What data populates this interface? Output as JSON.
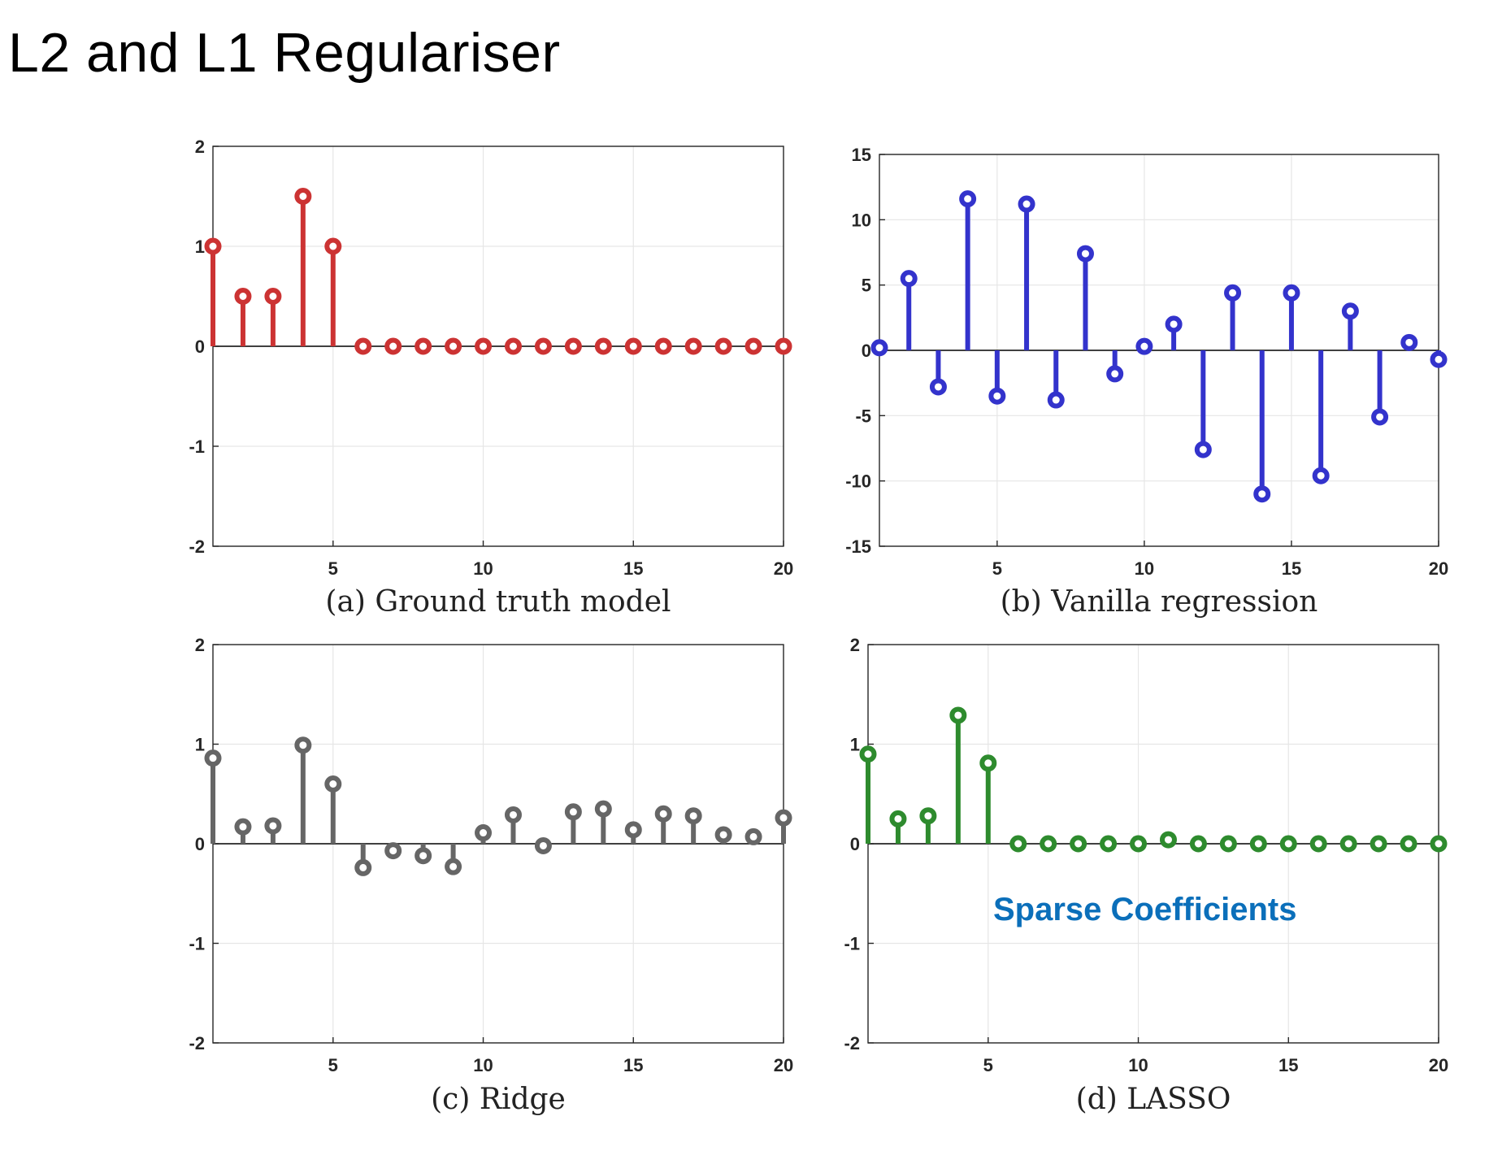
{
  "page": {
    "title": "L2 and L1 Regulariser"
  },
  "colors": {
    "axis": "#262626",
    "grid": "#e6e6e6"
  },
  "chart_data": [
    {
      "type": "stem",
      "caption": "(a) Ground truth model",
      "color": "#cc3333",
      "xlim": [
        1,
        20
      ],
      "ylim": [
        -2,
        2
      ],
      "xticks": [
        5,
        10,
        15,
        20
      ],
      "yticks": [
        -2,
        -1,
        0,
        1,
        2
      ],
      "grid": true,
      "x": [
        1,
        2,
        3,
        4,
        5,
        6,
        7,
        8,
        9,
        10,
        11,
        12,
        13,
        14,
        15,
        16,
        17,
        18,
        19,
        20
      ],
      "values": [
        1,
        0.5,
        0.5,
        1.5,
        1,
        0,
        0,
        0,
        0,
        0,
        0,
        0,
        0,
        0,
        0,
        0,
        0,
        0,
        0,
        0
      ]
    },
    {
      "type": "stem",
      "caption": "(b) Vanilla regression",
      "color": "#3333cc",
      "xlim": [
        1,
        20
      ],
      "ylim": [
        -15,
        15
      ],
      "xticks": [
        5,
        10,
        15,
        20
      ],
      "yticks": [
        -15,
        -10,
        -5,
        0,
        5,
        10,
        15
      ],
      "grid": true,
      "x": [
        1,
        2,
        3,
        4,
        5,
        6,
        7,
        8,
        9,
        10,
        11,
        12,
        13,
        14,
        15,
        16,
        17,
        18,
        19,
        20
      ],
      "values": [
        0.2,
        5.5,
        -2.8,
        11.6,
        -3.5,
        11.2,
        -3.8,
        7.4,
        -1.8,
        0.3,
        2.0,
        -7.6,
        4.4,
        -11.0,
        4.4,
        -9.6,
        3.0,
        -5.1,
        0.6,
        -0.7
      ]
    },
    {
      "type": "stem",
      "caption": "(c) Ridge",
      "color": "#666666",
      "xlim": [
        1,
        20
      ],
      "ylim": [
        -2,
        2
      ],
      "xticks": [
        5,
        10,
        15,
        20
      ],
      "yticks": [
        -2,
        -1,
        0,
        1,
        2
      ],
      "grid": true,
      "x": [
        1,
        2,
        3,
        4,
        5,
        6,
        7,
        8,
        9,
        10,
        11,
        12,
        13,
        14,
        15,
        16,
        17,
        18,
        19,
        20
      ],
      "values": [
        0.86,
        0.17,
        0.18,
        0.99,
        0.6,
        -0.24,
        -0.07,
        -0.12,
        -0.23,
        0.11,
        0.29,
        -0.02,
        0.32,
        0.35,
        0.14,
        0.3,
        0.28,
        0.09,
        0.07,
        0.26
      ]
    },
    {
      "type": "stem",
      "caption": "(d) LASSO",
      "color": "#2e8b2e",
      "xlim": [
        1,
        20
      ],
      "ylim": [
        -2,
        2
      ],
      "xticks": [
        5,
        10,
        15,
        20
      ],
      "yticks": [
        -2,
        -1,
        0,
        1,
        2
      ],
      "grid": true,
      "annotation": "Sparse Coefficients",
      "x": [
        1,
        2,
        3,
        4,
        5,
        6,
        7,
        8,
        9,
        10,
        11,
        12,
        13,
        14,
        15,
        16,
        17,
        18,
        19,
        20
      ],
      "values": [
        0.9,
        0.25,
        0.28,
        1.29,
        0.81,
        0,
        0,
        0,
        0,
        0,
        0.04,
        0,
        0,
        0,
        0,
        0,
        0,
        0,
        0,
        0
      ]
    }
  ]
}
